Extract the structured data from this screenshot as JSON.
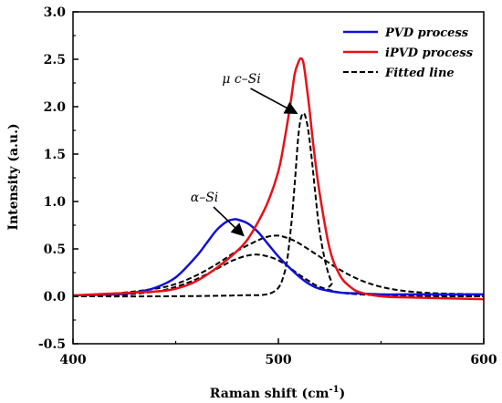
{
  "chart_data": {
    "type": "line",
    "xlabel": "Raman shift (cm",
    "xlabel_sup": "-1",
    "xlabel_close": ")",
    "ylabel": "Intensity (a.u.)",
    "xlim": [
      400,
      600
    ],
    "ylim": [
      -0.5,
      3.0
    ],
    "xticks": [
      "400",
      "500",
      "600"
    ],
    "yticks": [
      "-0.5",
      "0.0",
      "0.5",
      "1.0",
      "1.5",
      "2.0",
      "2.5",
      "3.0"
    ],
    "legend_position": "top-right",
    "series": [
      {
        "name": "PVD process",
        "color": "#1010d8",
        "dash": "solid",
        "x": [
          400,
          420,
          430,
          440,
          450,
          460,
          465,
          470,
          475,
          478,
          480,
          485,
          490,
          495,
          500,
          505,
          510,
          515,
          520,
          530,
          540,
          550,
          560,
          580,
          600
        ],
        "y": [
          0.01,
          0.02,
          0.04,
          0.09,
          0.2,
          0.42,
          0.56,
          0.7,
          0.79,
          0.81,
          0.81,
          0.77,
          0.68,
          0.55,
          0.42,
          0.31,
          0.21,
          0.13,
          0.08,
          0.04,
          0.03,
          0.02,
          0.02,
          0.02,
          0.02
        ]
      },
      {
        "name": "iPVD process",
        "color": "#e8101a",
        "dash": "solid",
        "x": [
          400,
          420,
          440,
          450,
          460,
          470,
          480,
          485,
          490,
          495,
          500,
          503,
          506,
          508,
          510,
          511,
          512,
          513,
          515,
          517,
          520,
          525,
          530,
          535,
          540,
          550,
          560,
          580,
          600
        ],
        "y": [
          0.01,
          0.03,
          0.05,
          0.08,
          0.16,
          0.3,
          0.48,
          0.6,
          0.78,
          1.0,
          1.32,
          1.65,
          2.05,
          2.35,
          2.48,
          2.51,
          2.48,
          2.35,
          2.0,
          1.6,
          1.1,
          0.5,
          0.22,
          0.1,
          0.04,
          0.0,
          -0.01,
          -0.02,
          -0.03
        ]
      },
      {
        "name": "Fitted line",
        "color": "#000000",
        "dash": "dashed",
        "x": [
          400,
          440,
          480,
          497,
          503,
          506,
          508,
          510,
          512,
          514,
          516,
          518,
          520,
          523,
          526,
          530,
          600
        ],
        "y": [
          0.0,
          0.0,
          0.01,
          0.04,
          0.25,
          0.7,
          1.2,
          1.75,
          1.93,
          1.82,
          1.5,
          1.08,
          0.7,
          0.35,
          0.15,
          0.04,
          0.0
        ]
      },
      {
        "name": "",
        "color": "#000000",
        "dash": "dashed",
        "x": [
          400,
          420,
          440,
          450,
          460,
          470,
          478,
          485,
          490,
          495,
          500,
          505,
          510,
          515,
          520,
          530,
          540,
          550,
          560,
          580,
          600
        ],
        "y": [
          0.0,
          0.01,
          0.05,
          0.1,
          0.18,
          0.29,
          0.38,
          0.43,
          0.44,
          0.42,
          0.38,
          0.31,
          0.23,
          0.16,
          0.1,
          0.04,
          0.02,
          0.01,
          0.0,
          0.0,
          0.0
        ]
      },
      {
        "name": "",
        "color": "#000000",
        "dash": "dashed",
        "x": [
          400,
          420,
          440,
          450,
          460,
          470,
          480,
          490,
          495,
          500,
          505,
          510,
          520,
          530,
          540,
          550,
          560,
          570,
          580,
          600
        ],
        "y": [
          0.01,
          0.03,
          0.08,
          0.13,
          0.22,
          0.34,
          0.48,
          0.59,
          0.63,
          0.64,
          0.61,
          0.56,
          0.42,
          0.28,
          0.17,
          0.1,
          0.06,
          0.04,
          0.03,
          0.02
        ]
      }
    ],
    "legend": [
      "PVD process",
      "iPVD process",
      "Fitted line"
    ],
    "annotations": [
      {
        "text": "α–Si",
        "at": [
          464,
          1.0
        ],
        "arrow_to": [
          483,
          0.64
        ]
      },
      {
        "text": "μ c–Si",
        "at": [
          482,
          2.25
        ],
        "arrow_to": [
          509,
          1.93
        ]
      }
    ]
  }
}
